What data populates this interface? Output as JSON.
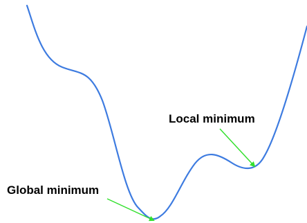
{
  "labels": {
    "local_minimum": "Local minimum",
    "global_minimum": "Global minimum"
  },
  "colors": {
    "curve": "#3d7be0",
    "arrow": "#33e02e",
    "text": "#000000",
    "background": "#ffffff"
  }
}
